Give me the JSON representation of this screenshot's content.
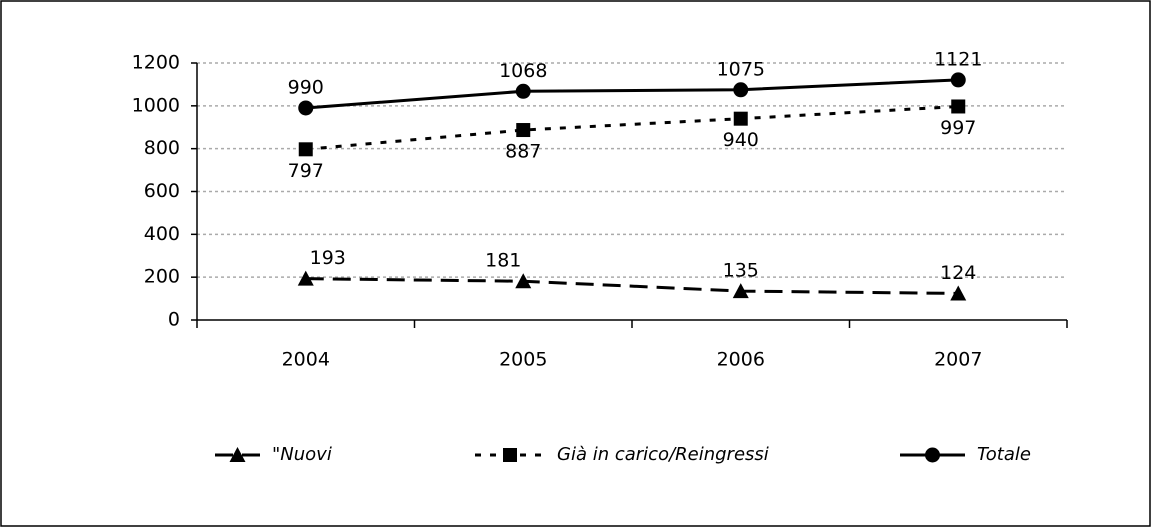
{
  "chart_data": {
    "type": "line",
    "categories": [
      "2004",
      "2005",
      "2006",
      "2007"
    ],
    "series": [
      {
        "name": "\"Nuovi",
        "color": "#000000",
        "values": [
          193,
          181,
          135,
          124
        ]
      },
      {
        "name": "Già in carico/Reingressi",
        "color": "#000000",
        "values": [
          797,
          887,
          940,
          997
        ]
      },
      {
        "name": "Totale",
        "color": "#000000",
        "values": [
          990,
          1068,
          1075,
          1121
        ]
      }
    ],
    "ylim": [
      0,
      1200
    ],
    "yticks": [
      0,
      200,
      400,
      600,
      800,
      1000,
      1200
    ],
    "grid": true,
    "legend": "bottom"
  }
}
